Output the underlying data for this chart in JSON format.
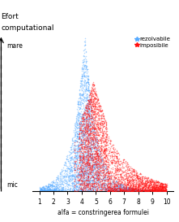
{
  "title_line1": "Efort",
  "title_line2": "computational",
  "ylabel_top": "mare",
  "ylabel_bottom": "mic",
  "xlabel": "alfa = constringerea formulei",
  "xlim": [
    0.5,
    10.5
  ],
  "ylim": [
    0,
    1
  ],
  "xticks": [
    1,
    2,
    3,
    4,
    5,
    6,
    7,
    8,
    9,
    10
  ],
  "legend_rezolvabile": "rezolvabile",
  "legend_imposibile": "imposibile",
  "color_rezolvabile": "#55aaff",
  "color_imposibile": "#ff1111",
  "n_points_rezolvabile": 4000,
  "n_points_imposibile": 4000,
  "seed": 42,
  "peak_alpha": 4.2,
  "bg_color": "#ffffff"
}
